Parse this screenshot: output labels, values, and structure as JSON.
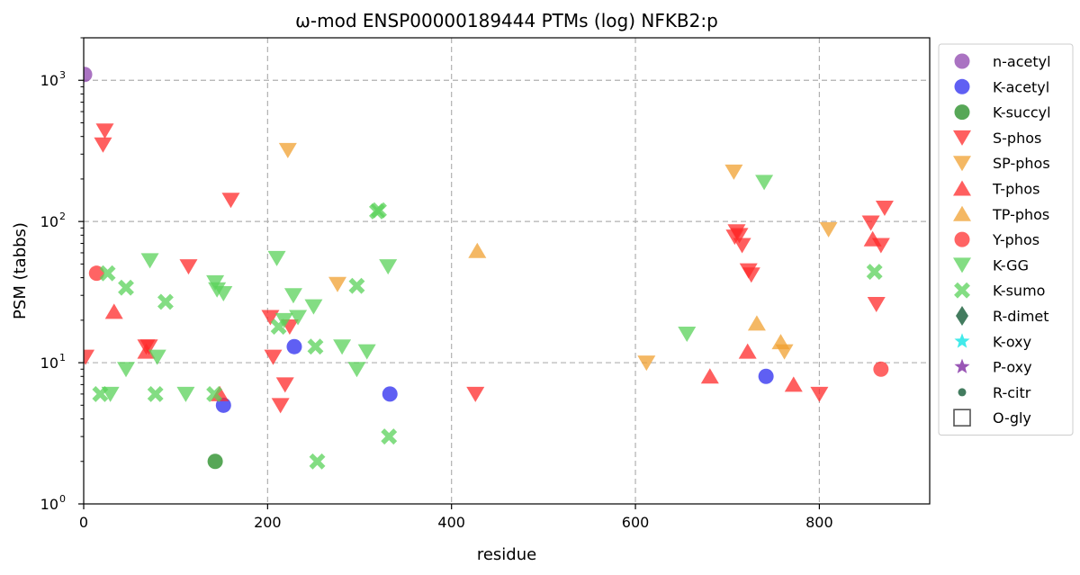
{
  "chart_data": {
    "type": "scatter",
    "title": "ω-mod ENSP00000189444 PTMs (log) NFKB2:p",
    "xlabel": "residue",
    "ylabel": "PSM (tabbs)",
    "xlim": [
      0,
      920
    ],
    "ylim": [
      1,
      2000
    ],
    "y_scale": "log",
    "x_ticks": [
      0,
      200,
      400,
      600,
      800
    ],
    "y_ticks": [
      {
        "value": 1,
        "base": "10",
        "exp": "0"
      },
      {
        "value": 10,
        "base": "10",
        "exp": "1"
      },
      {
        "value": 100,
        "base": "10",
        "exp": "2"
      },
      {
        "value": 1000,
        "base": "10",
        "exp": "3"
      }
    ],
    "grid": true,
    "legend_position": "outside-right",
    "series": [
      {
        "name": "n-acetyl",
        "marker": "circle",
        "color": "#8e44ad",
        "points": [
          [
            1,
            1100
          ]
        ]
      },
      {
        "name": "K-acetyl",
        "marker": "circle",
        "color": "#2929ef",
        "points": [
          [
            152,
            5
          ],
          [
            229,
            13
          ],
          [
            333,
            6
          ],
          [
            742,
            8
          ]
        ]
      },
      {
        "name": "K-succyl",
        "marker": "circle",
        "color": "#1f8a1f",
        "points": [
          [
            143,
            2
          ]
        ]
      },
      {
        "name": "S-phos",
        "marker": "triangle-down",
        "color": "#ff2a2a",
        "points": [
          [
            2,
            11
          ],
          [
            21,
            350
          ],
          [
            23,
            440
          ],
          [
            68,
            13
          ],
          [
            71,
            13
          ],
          [
            114,
            48
          ],
          [
            160,
            142
          ],
          [
            203,
            21
          ],
          [
            206,
            11
          ],
          [
            214,
            5
          ],
          [
            219,
            7
          ],
          [
            224,
            18
          ],
          [
            426,
            6
          ],
          [
            708,
            78
          ],
          [
            710,
            85
          ],
          [
            713,
            80
          ],
          [
            716,
            68
          ],
          [
            723,
            45
          ],
          [
            726,
            42
          ],
          [
            800,
            6
          ],
          [
            856,
            98
          ],
          [
            862,
            26
          ],
          [
            867,
            68
          ],
          [
            871,
            125
          ]
        ]
      },
      {
        "name": "SP-phos",
        "marker": "triangle-down",
        "color": "#f0a030",
        "points": [
          [
            222,
            320
          ],
          [
            276,
            36
          ],
          [
            612,
            10
          ],
          [
            707,
            225
          ],
          [
            762,
            12
          ],
          [
            810,
            88
          ]
        ]
      },
      {
        "name": "T-phos",
        "marker": "triangle-up",
        "color": "#ff2a2a",
        "points": [
          [
            33,
            23
          ],
          [
            68,
            12
          ],
          [
            148,
            6
          ],
          [
            681,
            8
          ],
          [
            722,
            12
          ],
          [
            772,
            7
          ],
          [
            858,
            75
          ]
        ]
      },
      {
        "name": "TP-phos",
        "marker": "triangle-up",
        "color": "#f0a030",
        "points": [
          [
            428,
            62
          ],
          [
            732,
            19
          ],
          [
            758,
            14
          ]
        ]
      },
      {
        "name": "Y-phos",
        "marker": "circle",
        "color": "#ff3030",
        "points": [
          [
            14,
            43
          ],
          [
            867,
            9
          ]
        ]
      },
      {
        "name": "K-GG",
        "marker": "triangle-down",
        "color": "#5ad15a",
        "points": [
          [
            29,
            6
          ],
          [
            46,
            9
          ],
          [
            72,
            53
          ],
          [
            80,
            11
          ],
          [
            111,
            6
          ],
          [
            143,
            37
          ],
          [
            145,
            33
          ],
          [
            152,
            31
          ],
          [
            210,
            55
          ],
          [
            218,
            20
          ],
          [
            228,
            30
          ],
          [
            233,
            21
          ],
          [
            250,
            25
          ],
          [
            281,
            13
          ],
          [
            297,
            9
          ],
          [
            308,
            12
          ],
          [
            331,
            48
          ],
          [
            656,
            16
          ],
          [
            740,
            190
          ]
        ]
      },
      {
        "name": "K-sumo",
        "marker": "x",
        "color": "#5ad15a",
        "points": [
          [
            18,
            6
          ],
          [
            26,
            43
          ],
          [
            46,
            34
          ],
          [
            78,
            6
          ],
          [
            89,
            27
          ],
          [
            142,
            6
          ],
          [
            212,
            18
          ],
          [
            252,
            13
          ],
          [
            254,
            2
          ],
          [
            297,
            35
          ],
          [
            319,
            118
          ],
          [
            321,
            120
          ],
          [
            332,
            3
          ],
          [
            860,
            44
          ]
        ]
      },
      {
        "name": "R-dimet",
        "marker": "diamond",
        "color": "#2f6e4e",
        "points": []
      },
      {
        "name": "K-oxy",
        "marker": "star",
        "color": "#2ee8e8",
        "points": []
      },
      {
        "name": "P-oxy",
        "marker": "star",
        "color": "#8e44ad",
        "points": []
      },
      {
        "name": "R-citr",
        "marker": "small-circle",
        "color": "#2f6e4e",
        "points": []
      },
      {
        "name": "O-gly",
        "marker": "square-open",
        "color": "#555555",
        "points": []
      }
    ]
  }
}
